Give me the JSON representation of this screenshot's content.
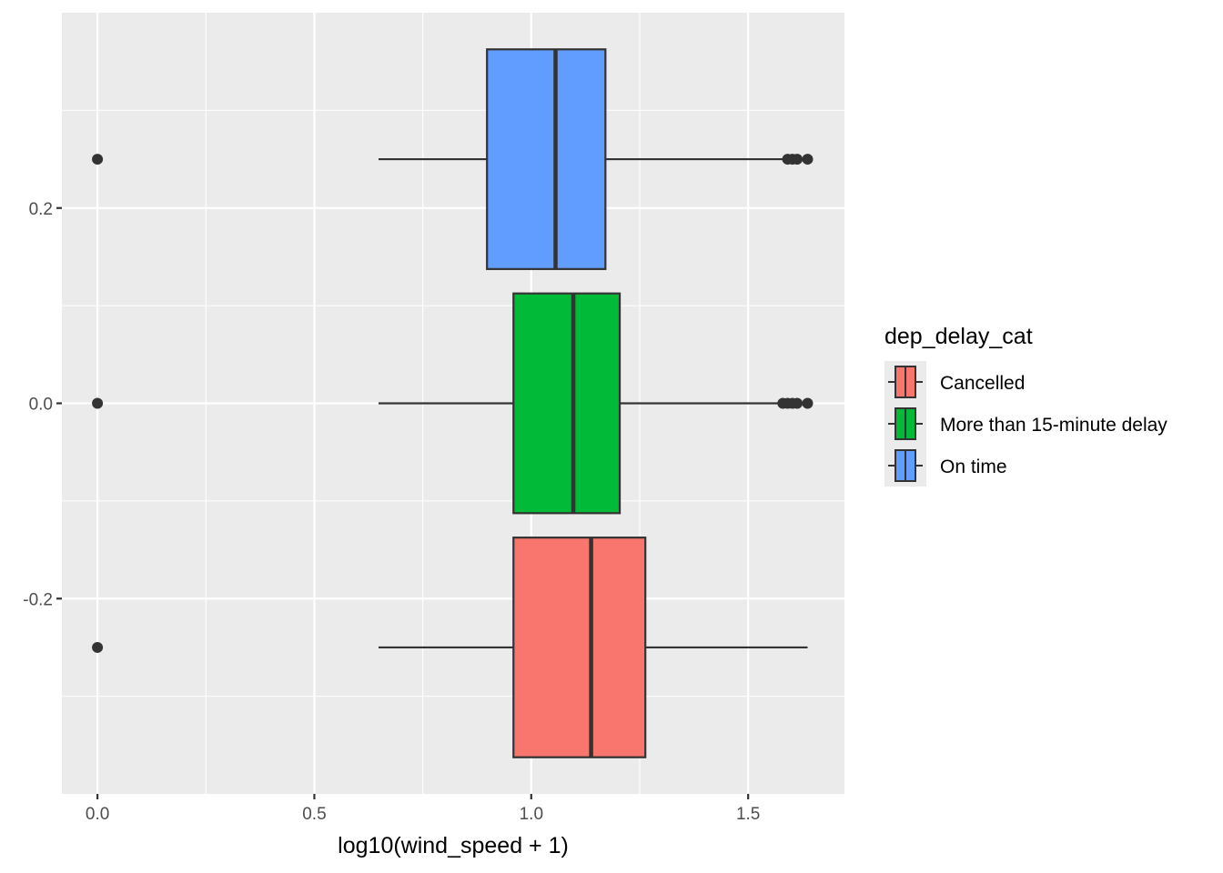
{
  "chart_data": {
    "type": "boxplot",
    "orientation": "horizontal",
    "xlabel": "log10(wind_speed + 1)",
    "ylabel": "",
    "xlim": [
      -0.082,
      1.722
    ],
    "ylim": [
      -0.4,
      0.4
    ],
    "x_ticks": [
      {
        "value": 0.0,
        "label": "0.0"
      },
      {
        "value": 0.5,
        "label": "0.5"
      },
      {
        "value": 1.0,
        "label": "1.0"
      },
      {
        "value": 1.5,
        "label": "1.5"
      }
    ],
    "y_ticks": [
      {
        "value": 0.2,
        "label": "0.2"
      },
      {
        "value": 0.0,
        "label": "0.0"
      },
      {
        "value": -0.2,
        "label": "-0.2"
      }
    ],
    "grid": true,
    "legend": {
      "title": "dep_delay_cat",
      "position": "right"
    },
    "series": [
      {
        "name": "Cancelled",
        "color": "#F8766D",
        "y_center": -0.25,
        "y_halfwidth": 0.1125,
        "whisker_low": 0.648,
        "q1": 0.959,
        "median": 1.138,
        "q3": 1.263,
        "whisker_high": 1.637,
        "outliers": [
          0.0
        ]
      },
      {
        "name": "More than 15-minute delay",
        "color": "#00BA38",
        "y_center": 0.0,
        "y_halfwidth": 0.1125,
        "whisker_low": 0.648,
        "q1": 0.959,
        "median": 1.097,
        "q3": 1.204,
        "whisker_high": 1.58,
        "outliers": [
          0.0,
          1.58,
          1.591,
          1.602,
          1.613,
          1.637
        ]
      },
      {
        "name": "On time",
        "color": "#619CFF",
        "y_center": 0.25,
        "y_halfwidth": 0.1125,
        "whisker_low": 0.648,
        "q1": 0.898,
        "median": 1.056,
        "q3": 1.171,
        "whisker_high": 1.58,
        "outliers": [
          0.0,
          1.591,
          1.602,
          1.613,
          1.637
        ]
      }
    ]
  }
}
